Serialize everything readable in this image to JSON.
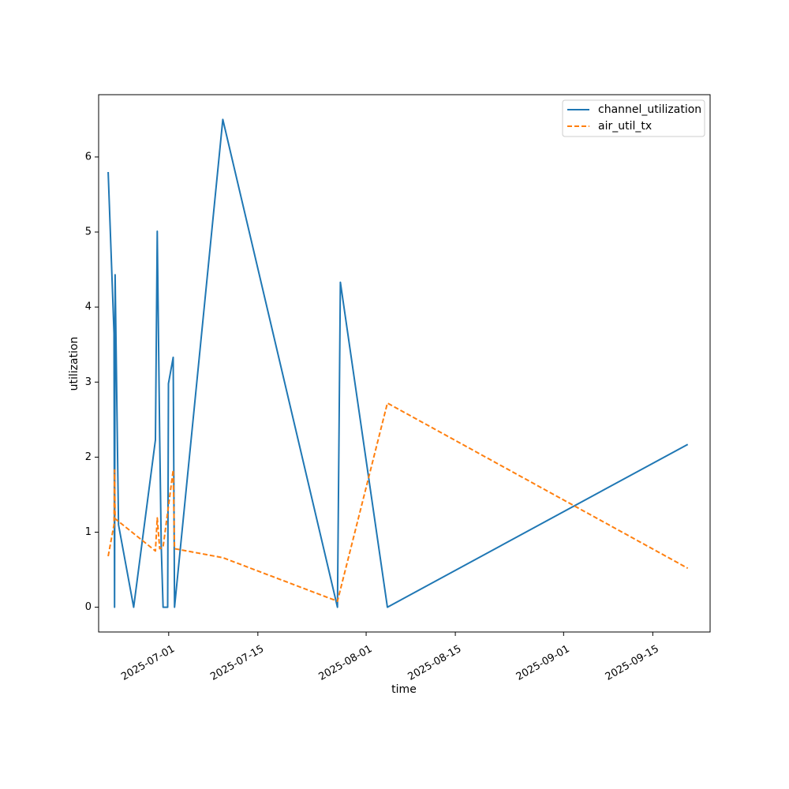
{
  "chart_data": {
    "type": "line",
    "title": "",
    "xlabel": "time",
    "ylabel": "utilization",
    "x_ticks": [
      "2025-07-01",
      "2025-07-15",
      "2025-08-01",
      "2025-08-15",
      "2025-09-01",
      "2025-09-15"
    ],
    "y_ticks": [
      0,
      1,
      2,
      3,
      4,
      5,
      6
    ],
    "xlim": [
      "2025-06-20",
      "2025-09-24"
    ],
    "ylim": [
      -0.33,
      6.83
    ],
    "grid": false,
    "legend_position": "top-right",
    "series": [
      {
        "name": "channel_utilization",
        "color": "#1f77b4",
        "style": "solid",
        "points": [
          {
            "x": "2025-06-21T12:00",
            "y": 5.8
          },
          {
            "x": "2025-06-22T10:00",
            "y": 3.65
          },
          {
            "x": "2025-06-22T12:00",
            "y": 0.0
          },
          {
            "x": "2025-06-22T14:00",
            "y": 4.43
          },
          {
            "x": "2025-06-23T03:00",
            "y": 1.1
          },
          {
            "x": "2025-06-25T12:00",
            "y": 0.0
          },
          {
            "x": "2025-06-28T22:00",
            "y": 2.23
          },
          {
            "x": "2025-06-29T05:00",
            "y": 5.01
          },
          {
            "x": "2025-06-29T14:00",
            "y": 2.25
          },
          {
            "x": "2025-06-29T20:00",
            "y": 0.8
          },
          {
            "x": "2025-06-30T03:00",
            "y": 0.0
          },
          {
            "x": "2025-06-30T20:00",
            "y": 0.0
          },
          {
            "x": "2025-06-30T23:00",
            "y": 2.98
          },
          {
            "x": "2025-07-01T17:00",
            "y": 3.33
          },
          {
            "x": "2025-07-01T22:00",
            "y": 0.0
          },
          {
            "x": "2025-07-09T12:00",
            "y": 6.5
          },
          {
            "x": "2025-07-27T12:00",
            "y": 0.0
          },
          {
            "x": "2025-07-27T23:00",
            "y": 4.33
          },
          {
            "x": "2025-08-04T08:00",
            "y": 0.0
          },
          {
            "x": "2025-09-20T12:00",
            "y": 2.17
          }
        ]
      },
      {
        "name": "air_util_tx",
        "color": "#ff7f0e",
        "style": "dashed",
        "points": [
          {
            "x": "2025-06-21T12:00",
            "y": 0.68
          },
          {
            "x": "2025-06-22T10:00",
            "y": 1.1
          },
          {
            "x": "2025-06-22T12:00",
            "y": 1.83
          },
          {
            "x": "2025-06-22T14:00",
            "y": 1.18
          },
          {
            "x": "2025-06-28T22:00",
            "y": 0.75
          },
          {
            "x": "2025-06-29T05:00",
            "y": 1.19
          },
          {
            "x": "2025-06-29T14:00",
            "y": 0.78
          },
          {
            "x": "2025-06-30T03:00",
            "y": 0.8
          },
          {
            "x": "2025-07-01T17:00",
            "y": 1.83
          },
          {
            "x": "2025-07-01T22:00",
            "y": 0.78
          },
          {
            "x": "2025-07-09T12:00",
            "y": 0.66
          },
          {
            "x": "2025-07-27T12:00",
            "y": 0.08
          },
          {
            "x": "2025-08-04T08:00",
            "y": 2.72
          },
          {
            "x": "2025-09-20T12:00",
            "y": 0.52
          }
        ]
      }
    ]
  }
}
